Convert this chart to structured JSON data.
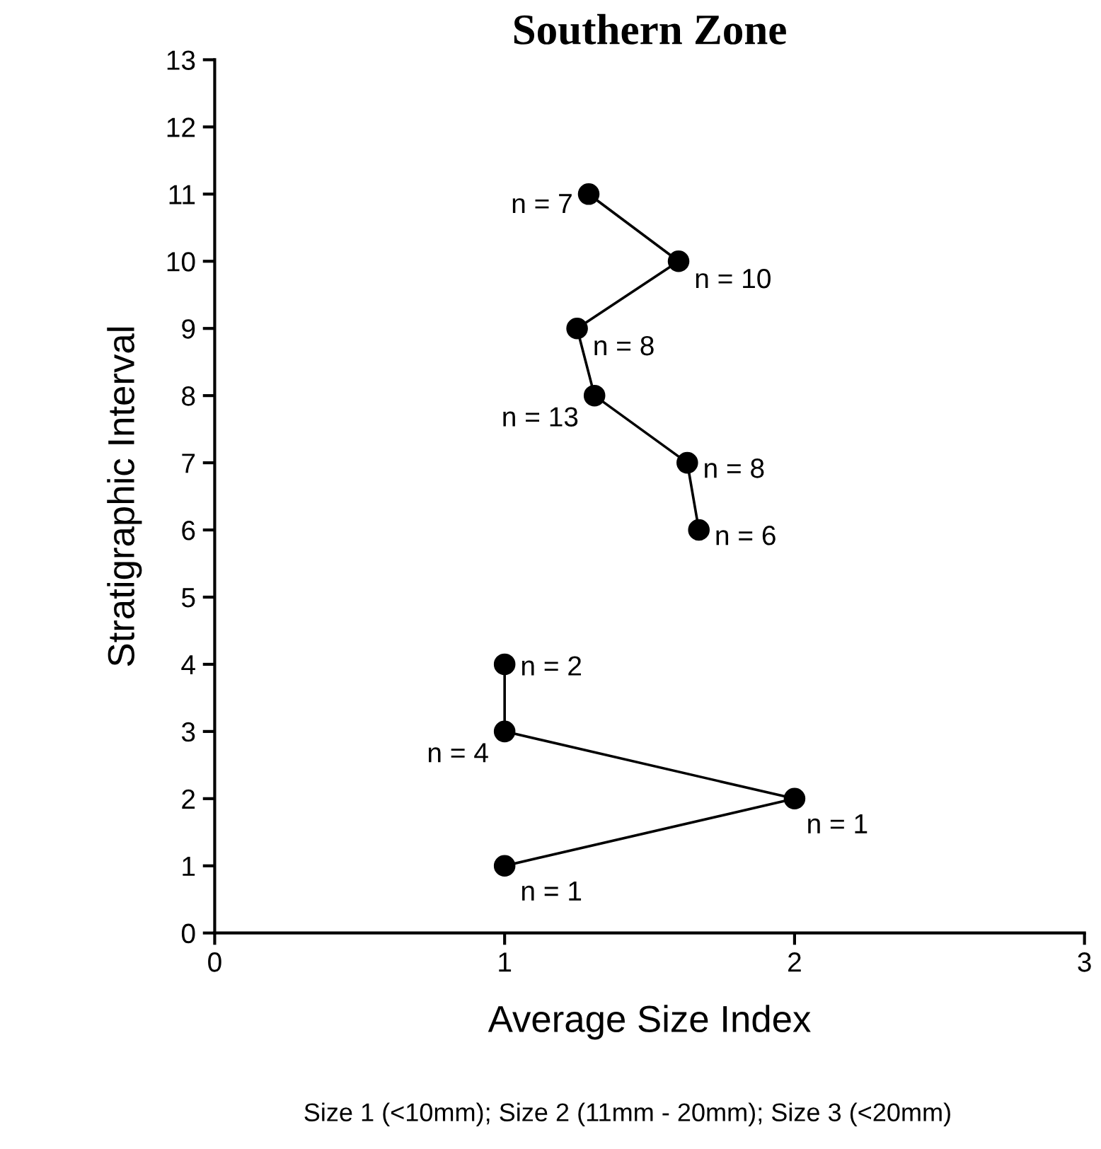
{
  "chart_data": {
    "type": "line",
    "title": "Southern Zone",
    "xlabel": "Average Size Index",
    "ylabel": "Stratigraphic Interval",
    "series": [
      {
        "color": "#000000",
        "x": [
          1,
          2,
          1,
          1
        ],
        "values": [
          1,
          2,
          3,
          4
        ]
      },
      {
        "color": "#000000",
        "x": [
          1.67,
          1.63,
          1.31,
          1.25,
          1.6,
          1.29
        ],
        "values": [
          6,
          7,
          8,
          9,
          10,
          11
        ]
      }
    ],
    "xlim": [
      0,
      3
    ],
    "xticks": [
      0,
      1,
      2,
      3
    ],
    "ylim": [
      0,
      13
    ],
    "yticks": [
      0,
      1,
      2,
      3,
      4,
      5,
      6,
      7,
      8,
      9,
      10,
      11,
      12,
      13
    ],
    "marker": "circle",
    "line_style": "solid",
    "grid": false,
    "legend": false,
    "annotations": [
      {
        "text": "n = 1",
        "x": 1,
        "y": 1
      },
      {
        "text": "n = 1",
        "x": 2,
        "y": 2
      },
      {
        "text": "n = 4",
        "x": 1,
        "y": 3
      },
      {
        "text": "n = 2",
        "x": 1,
        "y": 4
      },
      {
        "text": "n = 6",
        "x": 1.67,
        "y": 6
      },
      {
        "text": "n = 8",
        "x": 1.63,
        "y": 7
      },
      {
        "text": "n = 13",
        "x": 1.31,
        "y": 8
      },
      {
        "text": "n = 8",
        "x": 1.25,
        "y": 9
      },
      {
        "text": "n = 10",
        "x": 1.6,
        "y": 10
      },
      {
        "text": "n = 7",
        "x": 1.29,
        "y": 11
      },
      "Size 1 (<10mm); Size 2 (11mm - 20mm); Size 3 (<20mm)"
    ]
  }
}
